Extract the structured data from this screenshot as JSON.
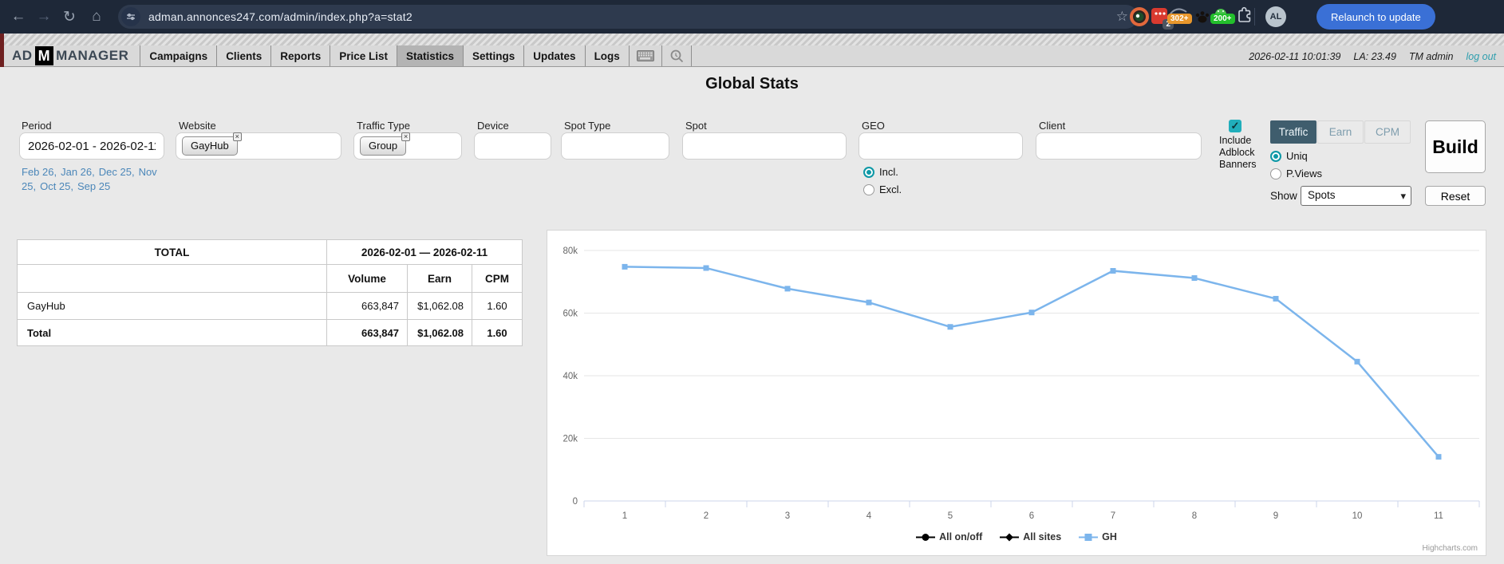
{
  "browser": {
    "url": "adman.annonces247.com/admin/index.php?a=stat2",
    "relaunch_button": "Relaunch to update",
    "avatar_initials": "AL",
    "badges": {
      "red": "2",
      "orange": "302+",
      "green": "200+"
    }
  },
  "icons": {
    "back": "←",
    "forward": "→",
    "reload": "↻",
    "home": "⌂",
    "star": "☆",
    "check": "✓",
    "chevron_down": "▾",
    "chip_close": "×"
  },
  "header": {
    "logo": {
      "ad": "AD",
      "m": "M",
      "manager": "MANAGER"
    },
    "nav": [
      "Campaigns",
      "Clients",
      "Reports",
      "Price List",
      "Statistics",
      "Settings",
      "Updates",
      "Logs"
    ],
    "datetime": "2026-02-11 10:01:39",
    "la": "LA: 23.49",
    "user": "TM admin",
    "logout": "log out"
  },
  "page_title": "Global Stats",
  "filters": {
    "period": {
      "label": "Period",
      "value": "2026-02-01 - 2026-02-11",
      "quick_links": [
        "Feb 26,",
        "Jan 26,",
        "Dec 25,",
        "Nov 25,",
        "Oct 25,",
        "Sep 25"
      ]
    },
    "website": {
      "label": "Website",
      "selected": "GayHub"
    },
    "traffic_type": {
      "label": "Traffic Type",
      "selected": "Group"
    },
    "device": {
      "label": "Device",
      "value": ""
    },
    "spot_type": {
      "label": "Spot Type",
      "value": ""
    },
    "spot": {
      "label": "Spot",
      "value": ""
    },
    "geo": {
      "label": "GEO",
      "value": "",
      "incl_label": "Incl.",
      "excl_label": "Excl.",
      "mode": "Incl."
    },
    "client": {
      "label": "Client",
      "value": ""
    },
    "adblock": {
      "label": "Include Adblock Banners",
      "checked": true
    },
    "metric_tabs": {
      "options": [
        "Traffic",
        "Earn",
        "CPM"
      ],
      "active": "Traffic"
    },
    "count_mode": {
      "options": [
        "Uniq",
        "P.Views"
      ],
      "selected": "Uniq"
    },
    "show": {
      "label": "Show",
      "value": "Spots"
    },
    "build_button": "Build",
    "reset_button": "Reset"
  },
  "table": {
    "title_header": "TOTAL",
    "period_header": "2026-02-01 — 2026-02-11",
    "columns": [
      "Volume",
      "Earn",
      "CPM"
    ],
    "rows": [
      {
        "name": "GayHub",
        "volume": "663,847",
        "earn": "$1,062.08",
        "cpm": "1.60"
      }
    ],
    "total_row": {
      "name": "Total",
      "volume": "663,847",
      "earn": "$1,062.08",
      "cpm": "1.60"
    }
  },
  "chart_data": {
    "type": "line",
    "title": "",
    "x": [
      1,
      2,
      3,
      4,
      5,
      6,
      7,
      8,
      9,
      10,
      11
    ],
    "xlabel": "",
    "ylabel": "",
    "ylim": [
      0,
      80000
    ],
    "yticks": [
      "0",
      "20k",
      "40k",
      "60k",
      "80k"
    ],
    "grid": true,
    "legend_position": "bottom",
    "series": [
      {
        "name": "All on/off",
        "color": "#000000",
        "marker": "circle",
        "values": []
      },
      {
        "name": "All sites",
        "color": "#000000",
        "marker": "diamond",
        "values": []
      },
      {
        "name": "GH",
        "color": "#7cb5ec",
        "marker": "square",
        "values": [
          74800,
          74400,
          67800,
          63400,
          55600,
          60200,
          73500,
          71200,
          64600,
          44500,
          14100
        ]
      }
    ],
    "credit": "Highcharts.com"
  },
  "colors": {
    "accent_teal": "#0e98a6",
    "series_blue": "#7cb5ec",
    "active_tab_bg": "#3f5d6d",
    "chrome_bg": "#1e2838",
    "relaunch_blue": "#3a70d6"
  }
}
